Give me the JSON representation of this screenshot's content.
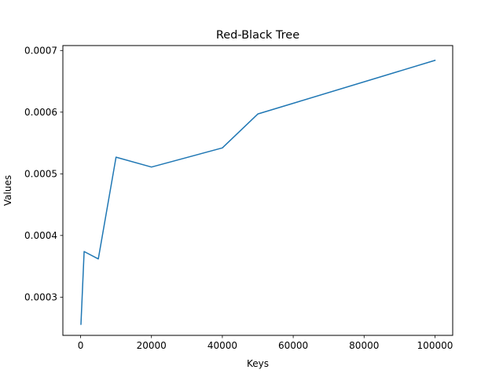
{
  "chart_data": {
    "type": "line",
    "title": "Red-Black Tree",
    "xlabel": "Keys",
    "ylabel": "Values",
    "xlim": [
      -5000,
      105000
    ],
    "ylim": [
      0.000238,
      0.000708
    ],
    "xticks": [
      0,
      20000,
      40000,
      60000,
      80000,
      100000
    ],
    "xtick_labels": [
      "0",
      "20000",
      "40000",
      "60000",
      "80000",
      "100000"
    ],
    "yticks": [
      0.0003,
      0.0004,
      0.0005,
      0.0006,
      0.0007
    ],
    "ytick_labels": [
      "0.0003",
      "0.0004",
      "0.0005",
      "0.0006",
      "0.0007"
    ],
    "grid": false,
    "legend": "none",
    "series": [
      {
        "color": "#1f77b4",
        "x": [
          100,
          1000,
          5000,
          10000,
          20000,
          40000,
          50000,
          100000
        ],
        "y": [
          0.000256,
          0.000374,
          0.000362,
          0.000527,
          0.000511,
          0.000542,
          0.000597,
          0.000684
        ]
      }
    ]
  }
}
